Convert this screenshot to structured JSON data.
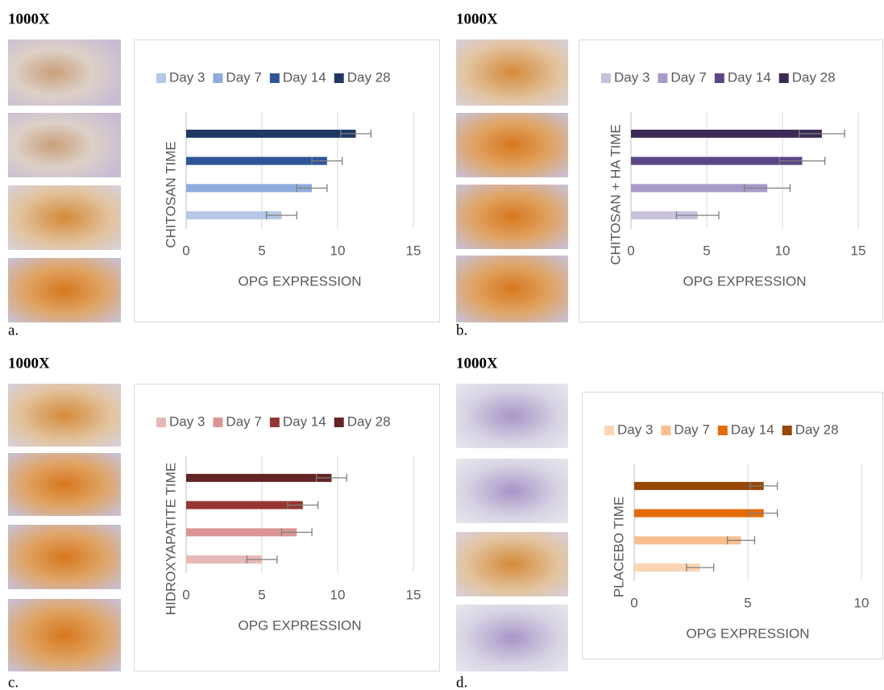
{
  "panels": [
    {
      "magnification": "1000X",
      "label": "a."
    },
    {
      "magnification": "1000X",
      "label": "b."
    },
    {
      "magnification": "1000X",
      "label": "c."
    },
    {
      "magnification": "1000X",
      "label": "d."
    }
  ],
  "chart_data": [
    {
      "type": "hbar",
      "ylabel": "CHITOSAN TIME",
      "xlabel": "OPG EXPRESSION",
      "xlim": [
        0,
        15
      ],
      "xticks": [
        0,
        5,
        10,
        15
      ],
      "grid": true,
      "series": [
        {
          "name": "Day 3",
          "color": "#b4c7e7",
          "values": [
            6.3
          ],
          "errors": [
            1.0
          ]
        },
        {
          "name": "Day 7",
          "color": "#8faadc",
          "values": [
            8.3
          ],
          "errors": [
            1.0
          ]
        },
        {
          "name": "Day 14",
          "color": "#2f5597",
          "values": [
            9.3
          ],
          "errors": [
            1.0
          ]
        },
        {
          "name": "Day 28",
          "color": "#203864",
          "values": [
            11.2
          ],
          "errors": [
            1.0
          ]
        }
      ]
    },
    {
      "type": "hbar",
      "ylabel": "CHITOSAN + HA TIME",
      "xlabel": "OPG EXPRESSION",
      "xlim": [
        0,
        15
      ],
      "xticks": [
        0,
        5,
        10,
        15
      ],
      "grid": true,
      "series": [
        {
          "name": "Day 3",
          "color": "#c9c0dd",
          "values": [
            4.4
          ],
          "errors": [
            1.4
          ]
        },
        {
          "name": "Day 7",
          "color": "#a799c8",
          "values": [
            9.0
          ],
          "errors": [
            1.5
          ]
        },
        {
          "name": "Day 14",
          "color": "#5b4785",
          "values": [
            11.3
          ],
          "errors": [
            1.5
          ]
        },
        {
          "name": "Day 28",
          "color": "#3b2a55",
          "values": [
            12.6
          ],
          "errors": [
            1.5
          ]
        }
      ]
    },
    {
      "type": "hbar",
      "ylabel": "HIDROXYAPATITE TIME",
      "xlabel": "OPG EXPRESSION",
      "xlim": [
        0,
        15
      ],
      "xticks": [
        0,
        5,
        10,
        15
      ],
      "grid": true,
      "series": [
        {
          "name": "Day 3",
          "color": "#e6b8b7",
          "values": [
            5.0
          ],
          "errors": [
            1.0
          ]
        },
        {
          "name": "Day 7",
          "color": "#da9694",
          "values": [
            7.3
          ],
          "errors": [
            1.0
          ]
        },
        {
          "name": "Day 14",
          "color": "#963634",
          "values": [
            7.7
          ],
          "errors": [
            1.0
          ]
        },
        {
          "name": "Day 28",
          "color": "#632523",
          "values": [
            9.6
          ],
          "errors": [
            1.0
          ]
        }
      ]
    },
    {
      "type": "hbar",
      "ylabel": "PLACEBO TIME",
      "xlabel": "OPG EXPRESSION",
      "xlim": [
        0,
        10
      ],
      "xticks": [
        0,
        5,
        10
      ],
      "grid": true,
      "series": [
        {
          "name": "Day 3",
          "color": "#fbd4b4",
          "values": [
            2.9
          ],
          "errors": [
            0.6
          ]
        },
        {
          "name": "Day 7",
          "color": "#f9bf8f",
          "values": [
            4.7
          ],
          "errors": [
            0.6
          ]
        },
        {
          "name": "Day 14",
          "color": "#e36c09",
          "values": [
            5.7
          ],
          "errors": [
            0.6
          ]
        },
        {
          "name": "Day 28",
          "color": "#974806",
          "values": [
            5.7
          ],
          "errors": [
            0.6
          ]
        }
      ]
    }
  ]
}
